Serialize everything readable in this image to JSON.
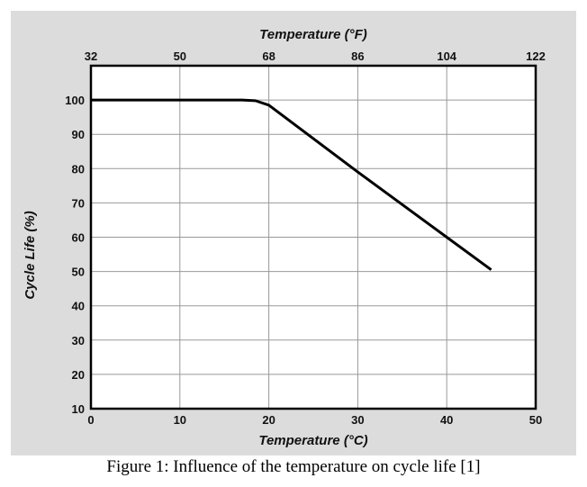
{
  "caption": "Figure 1: Influence of the temperature on cycle life [1]",
  "chart_data": {
    "type": "line",
    "title": "",
    "xlabel": "Temperature (°C)",
    "x2label": "Temperature (°F)",
    "ylabel": "Cycle Life (%)",
    "xlim": [
      0,
      50
    ],
    "ylim": [
      10,
      110
    ],
    "xticks": [
      "0",
      "10",
      "20",
      "30",
      "40",
      "50"
    ],
    "x2ticks": [
      "32",
      "50",
      "68",
      "86",
      "104",
      "122"
    ],
    "yticks": [
      "10",
      "20",
      "30",
      "40",
      "50",
      "60",
      "70",
      "80",
      "90",
      "100"
    ],
    "grid": true,
    "series": [
      {
        "name": "Cycle life",
        "x": [
          0,
          17,
          18.5,
          20,
          30,
          40,
          45
        ],
        "y": [
          100,
          100,
          99.8,
          98.5,
          79,
          60,
          50.5
        ]
      }
    ],
    "line_color": "#000000"
  }
}
